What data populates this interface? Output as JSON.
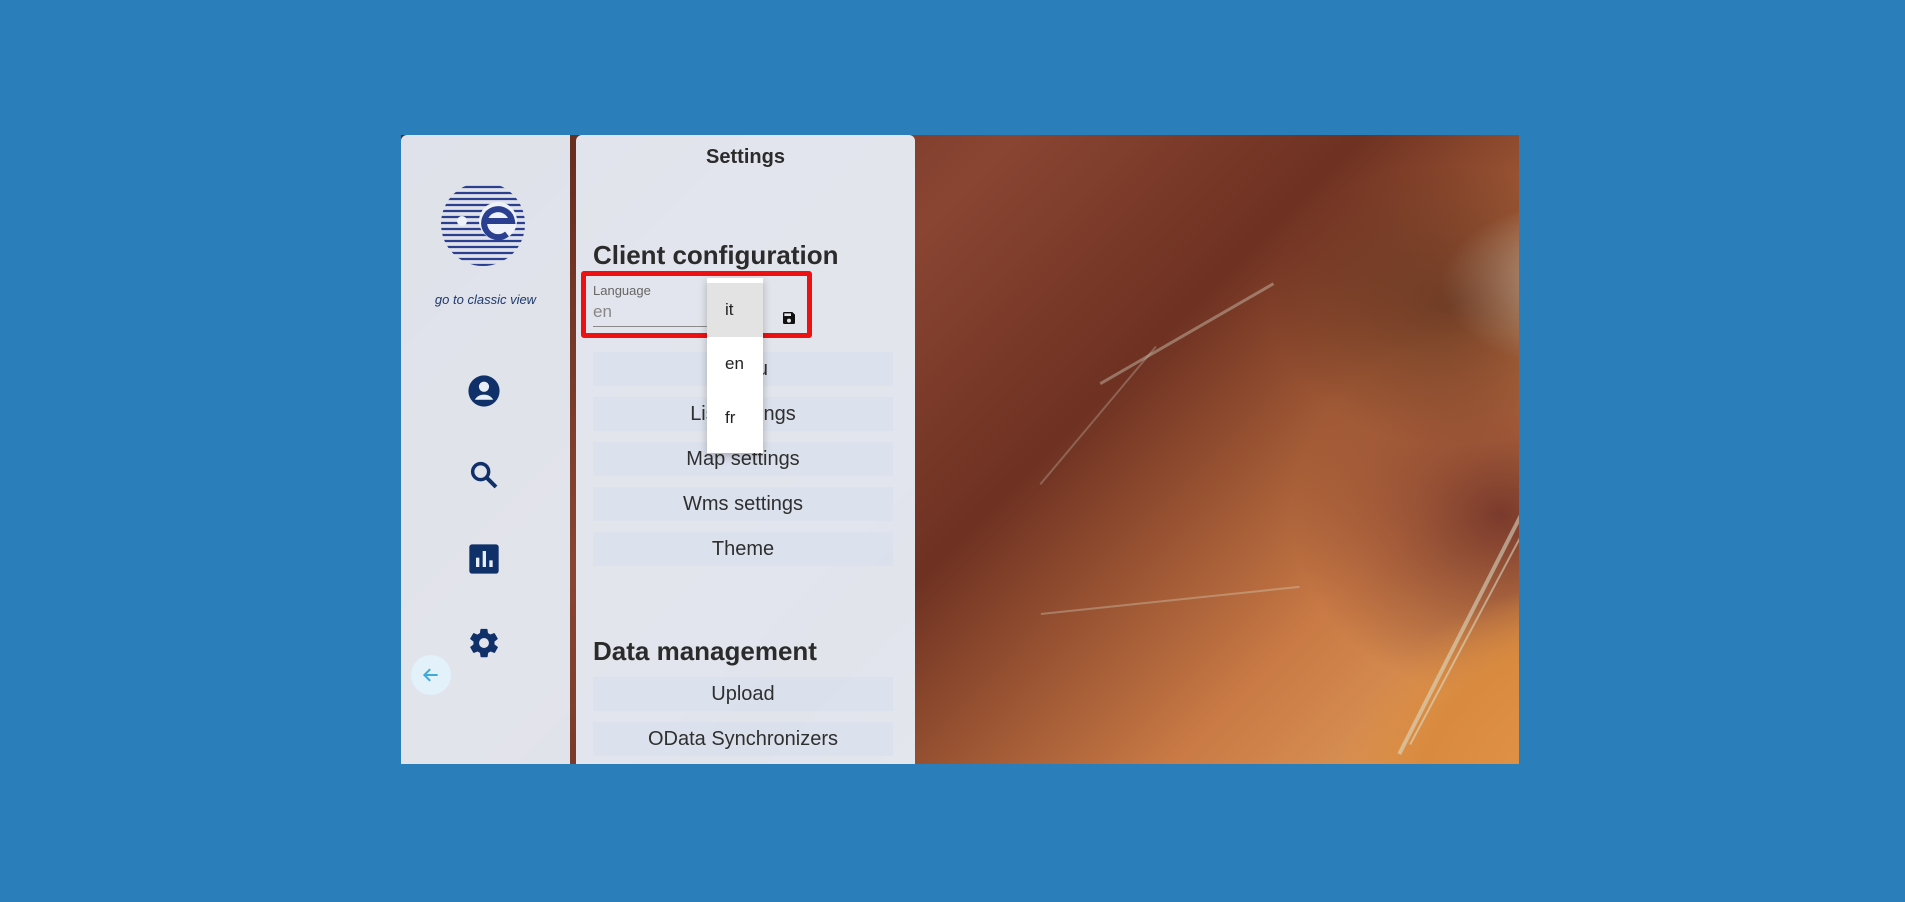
{
  "settings": {
    "title": "Settings",
    "client_configuration": "Client configuration",
    "language": {
      "label": "Language",
      "value": "en",
      "options": [
        "it",
        "en",
        "fr"
      ]
    },
    "menu_items": [
      "Menu",
      "List settings",
      "Map settings",
      "Wms settings",
      "Theme"
    ],
    "data_management": "Data management",
    "data_items": [
      "Upload",
      "OData Synchronizers"
    ]
  },
  "sidebar": {
    "classic_view_link": "go to classic view",
    "icons": [
      "account-icon",
      "search-icon",
      "chart-icon",
      "settings-icon"
    ],
    "back_icon": "arrow-left-icon"
  },
  "colors": {
    "background": "#2a7fba",
    "icon": "#10306a",
    "highlight": "#ee1111"
  }
}
